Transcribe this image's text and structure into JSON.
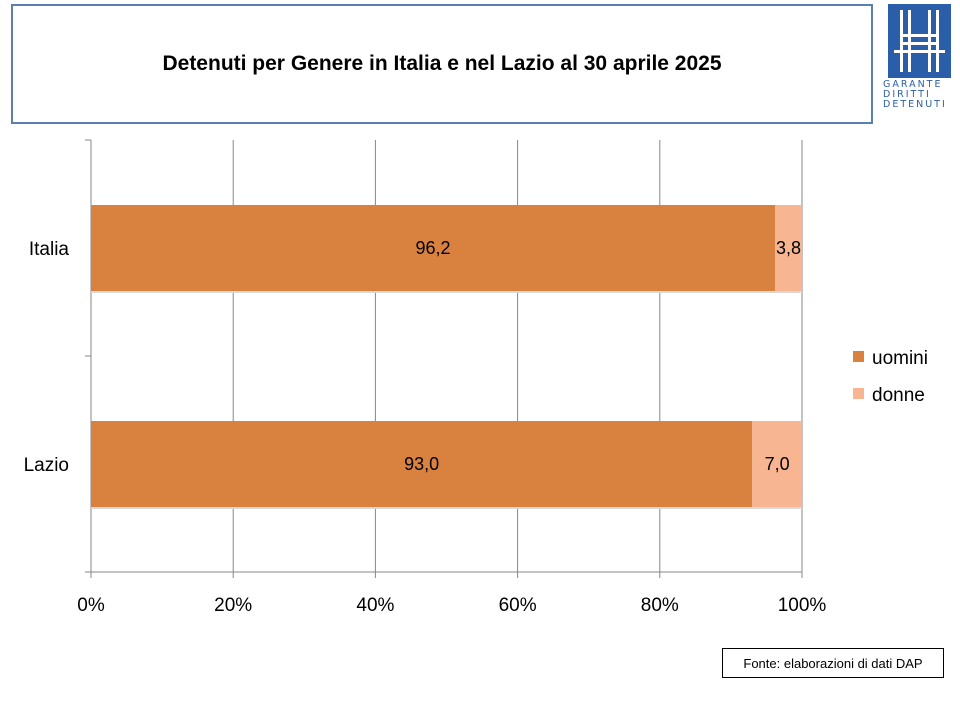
{
  "title": "Detenuti per Genere in Italia e nel Lazio al 30 aprile 2025",
  "logo": {
    "line1": "GARANTE",
    "line2": "DIRITTI",
    "line3": "DETENUTI",
    "color": "#2b5ea8"
  },
  "source": "Fonte: elaborazioni di dati DAP",
  "chart_data": {
    "type": "bar",
    "orientation": "horizontal",
    "stacked": "percent",
    "title": "Detenuti per Genere in Italia e nel Lazio al 30 aprile 2025",
    "categories": [
      "Italia",
      "Lazio"
    ],
    "series": [
      {
        "name": "uomini",
        "values": [
          96.2,
          93.0
        ],
        "labels": [
          "96,2",
          "93,0"
        ],
        "color": "#d9823f"
      },
      {
        "name": "donne",
        "values": [
          3.8,
          7.0
        ],
        "labels": [
          "3,8",
          "7,0"
        ],
        "color": "#f7b592"
      }
    ],
    "xlim": [
      0,
      100
    ],
    "xticks": [
      0,
      20,
      40,
      60,
      80,
      100
    ],
    "xtick_labels": [
      "0%",
      "20%",
      "40%",
      "60%",
      "80%",
      "100%"
    ],
    "grid": true,
    "legend": "right"
  }
}
